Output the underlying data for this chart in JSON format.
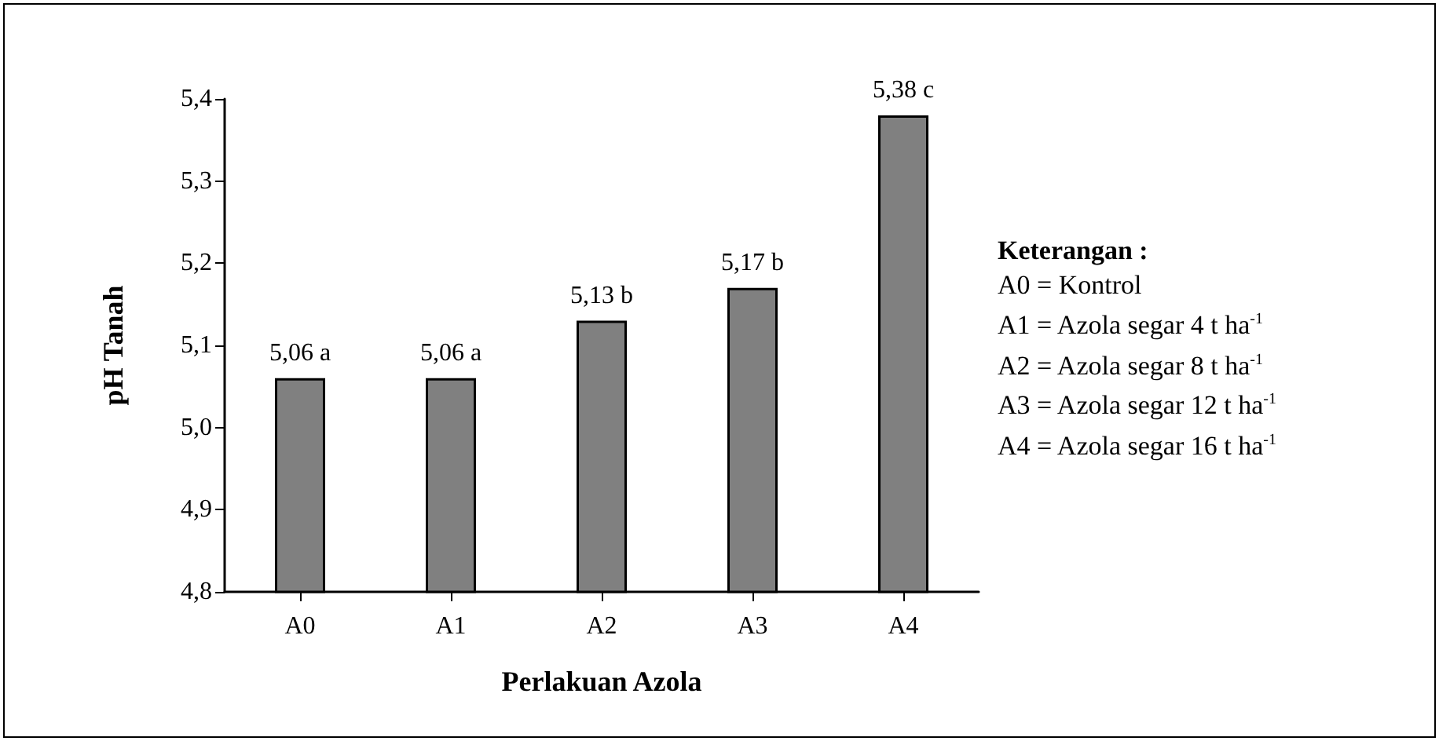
{
  "chart_data": {
    "type": "bar",
    "xlabel": "Perlakuan Azola",
    "ylabel": "pH Tanah",
    "categories": [
      "A0",
      "A1",
      "A2",
      "A3",
      "A4"
    ],
    "values": [
      5.06,
      5.06,
      5.13,
      5.17,
      5.38
    ],
    "value_labels": [
      "5,06 a",
      "5,06 a",
      "5,13 b",
      "5,17 b",
      "5,38 c"
    ],
    "color": "#808080",
    "ylim": [
      4.8,
      5.4
    ],
    "yticks": [
      {
        "value": 4.8,
        "label": "4,8"
      },
      {
        "value": 4.9,
        "label": "4,9"
      },
      {
        "value": 5.0,
        "label": "5,0"
      },
      {
        "value": 5.1,
        "label": "5,1"
      },
      {
        "value": 5.2,
        "label": "5,2"
      },
      {
        "value": 5.3,
        "label": "5,3"
      },
      {
        "value": 5.4,
        "label": "5,4"
      }
    ],
    "grid": false,
    "annotations": [
      "Keterangan :",
      "A0 = Kontrol",
      "A1 = Azola segar 4 t ha$^{-1}$",
      "A2 = Azola segar 8 t ha$^{-1}$",
      "A3 = Azola segar 12 t ha$^{-1}$",
      "A4 = Azola segar 16 t ha$^{-1}$"
    ]
  }
}
